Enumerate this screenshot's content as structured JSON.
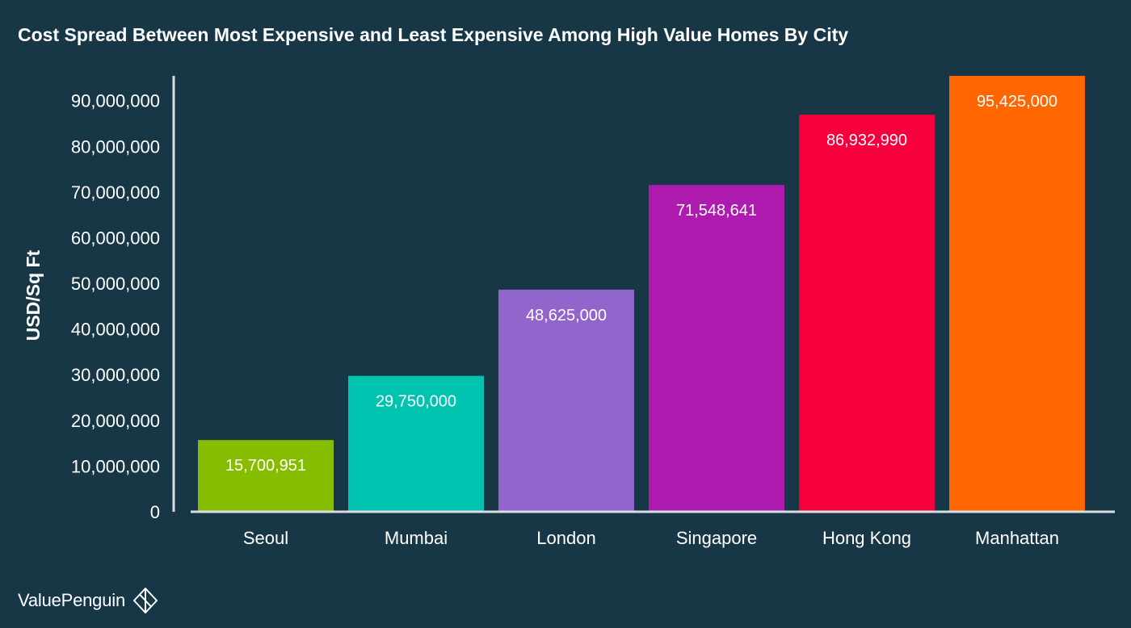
{
  "brand": {
    "name": "ValuePenguin",
    "logo_icon": "penguin-logo-icon"
  },
  "chart_data": {
    "type": "bar",
    "title": "Cost Spread Between Most Expensive and Least Expensive Among High Value Homes By City",
    "xlabel": "",
    "ylabel": "USD/Sq Ft",
    "categories": [
      "Seoul",
      "Mumbai",
      "London",
      "Singapore",
      "Hong Kong",
      "Manhattan"
    ],
    "values": [
      15700951,
      29750000,
      48625000,
      71548641,
      86932990,
      95425000
    ],
    "data_labels": [
      "15,700,951",
      "29,750,000",
      "48,625,000",
      "71,548,641",
      "86,932,990",
      "95,425,000"
    ],
    "colors": [
      "#86bd00",
      "#00c4b0",
      "#9165cc",
      "#ae1caf",
      "#f5003d",
      "#ff6600"
    ],
    "yticks": [
      0,
      10000000,
      20000000,
      30000000,
      40000000,
      50000000,
      60000000,
      70000000,
      80000000,
      90000000
    ],
    "ytick_labels": [
      "0",
      "10,000,000",
      "20,000,000",
      "30,000,000",
      "40,000,000",
      "50,000,000",
      "60,000,000",
      "70,000,000",
      "80,000,000",
      "90,000,000"
    ],
    "ylim": [
      0,
      95425000
    ],
    "grid": false,
    "legend": "none",
    "axis_color": "#d9dde0",
    "text_color": "#ffffff",
    "background": "#173746"
  }
}
